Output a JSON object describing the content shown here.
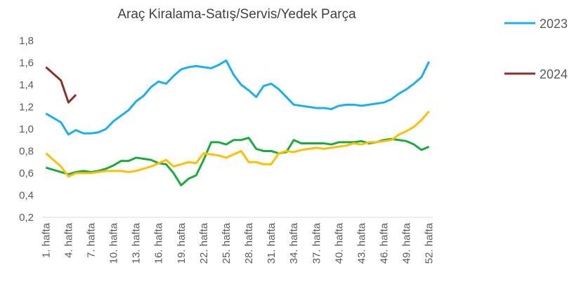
{
  "chart_data": {
    "type": "line",
    "title": "Araç Kiralama-Satış/Servis/Yedek Parça",
    "categories": [
      "1. hafta",
      null,
      null,
      "4. hafta",
      null,
      null,
      "7. hafta",
      null,
      null,
      "10. hafta",
      null,
      null,
      "13. hafta",
      null,
      null,
      "16. hafta",
      null,
      null,
      "19. hafta",
      null,
      null,
      "22. hafta",
      null,
      null,
      "25. hafta",
      null,
      null,
      "28. hafta",
      null,
      null,
      "31. hafta",
      null,
      null,
      "34. hafta",
      null,
      null,
      "37. hafta",
      null,
      null,
      "40. hafta",
      null,
      null,
      "43. hafta",
      null,
      null,
      "46. hafta",
      null,
      null,
      "49. hafta",
      null,
      null,
      "52. hafta"
    ],
    "series": [
      {
        "name": "2023",
        "color": "#1ab0f0",
        "values": [
          1.14,
          1.1,
          1.06,
          0.95,
          0.99,
          0.96,
          0.96,
          0.97,
          1.0,
          1.07,
          1.12,
          1.17,
          1.25,
          1.3,
          1.38,
          1.43,
          1.41,
          1.48,
          1.54,
          1.56,
          1.57,
          1.56,
          1.55,
          1.58,
          1.62,
          1.49,
          1.4,
          1.35,
          1.29,
          1.39,
          1.41,
          1.36,
          1.29,
          1.22,
          1.21,
          1.2,
          1.19,
          1.19,
          1.18,
          1.21,
          1.22,
          1.22,
          1.21,
          1.22,
          1.23,
          1.24,
          1.27,
          1.32,
          1.36,
          1.41,
          1.47,
          1.61
        ]
      },
      {
        "name": "2024",
        "color": "#8b3030",
        "values": [
          1.56,
          1.5,
          1.44,
          1.24,
          1.31,
          null,
          null,
          null,
          null,
          null,
          null,
          null,
          null,
          null,
          null,
          null,
          null,
          null,
          null,
          null,
          null,
          null,
          null,
          null,
          null,
          null,
          null,
          null,
          null,
          null,
          null,
          null,
          null,
          null,
          null,
          null,
          null,
          null,
          null,
          null,
          null,
          null,
          null,
          null,
          null,
          null,
          null,
          null,
          null,
          null,
          null,
          null
        ]
      },
      {
        "color": "#1aab40",
        "values": [
          0.65,
          0.63,
          0.61,
          0.59,
          0.61,
          0.62,
          0.61,
          0.62,
          0.64,
          0.67,
          0.71,
          0.71,
          0.74,
          0.73,
          0.72,
          0.69,
          0.68,
          0.6,
          0.49,
          0.55,
          0.58,
          0.72,
          0.88,
          0.88,
          0.86,
          0.9,
          0.9,
          0.92,
          0.82,
          0.8,
          0.8,
          0.78,
          0.79,
          0.9,
          0.87,
          0.87,
          0.87,
          0.87,
          0.86,
          0.88,
          0.88,
          0.88,
          0.89,
          0.87,
          0.88,
          0.9,
          0.91,
          0.9,
          0.89,
          0.86,
          0.81,
          0.84
        ]
      },
      {
        "color": "#ffc000",
        "values": [
          0.78,
          0.72,
          0.66,
          0.57,
          0.6,
          0.6,
          0.6,
          0.61,
          0.62,
          0.62,
          0.62,
          0.61,
          0.62,
          0.64,
          0.66,
          0.69,
          0.72,
          0.66,
          0.68,
          0.7,
          0.69,
          0.78,
          0.77,
          0.76,
          0.74,
          0.77,
          0.8,
          0.7,
          0.7,
          0.68,
          0.68,
          0.78,
          0.8,
          0.79,
          0.81,
          0.82,
          0.83,
          0.82,
          0.83,
          0.84,
          0.85,
          0.87,
          0.86,
          0.88,
          0.88,
          0.89,
          0.9,
          0.95,
          0.98,
          1.02,
          1.08,
          1.16
        ]
      }
    ],
    "ylim": [
      0.2,
      1.8
    ],
    "yticks": [
      {
        "value": 0.2,
        "label": "0,2"
      },
      {
        "value": 0.4,
        "label": "0,4"
      },
      {
        "value": 0.6,
        "label": "0,6"
      },
      {
        "value": 0.8,
        "label": "0,8"
      },
      {
        "value": 1.0,
        "label": "1,0"
      },
      {
        "value": 1.2,
        "label": "1,2"
      },
      {
        "value": 1.4,
        "label": "1,4"
      },
      {
        "value": 1.6,
        "label": "1,6"
      },
      {
        "value": 1.8,
        "label": "1,8"
      }
    ],
    "grid": false,
    "legend": "right"
  }
}
